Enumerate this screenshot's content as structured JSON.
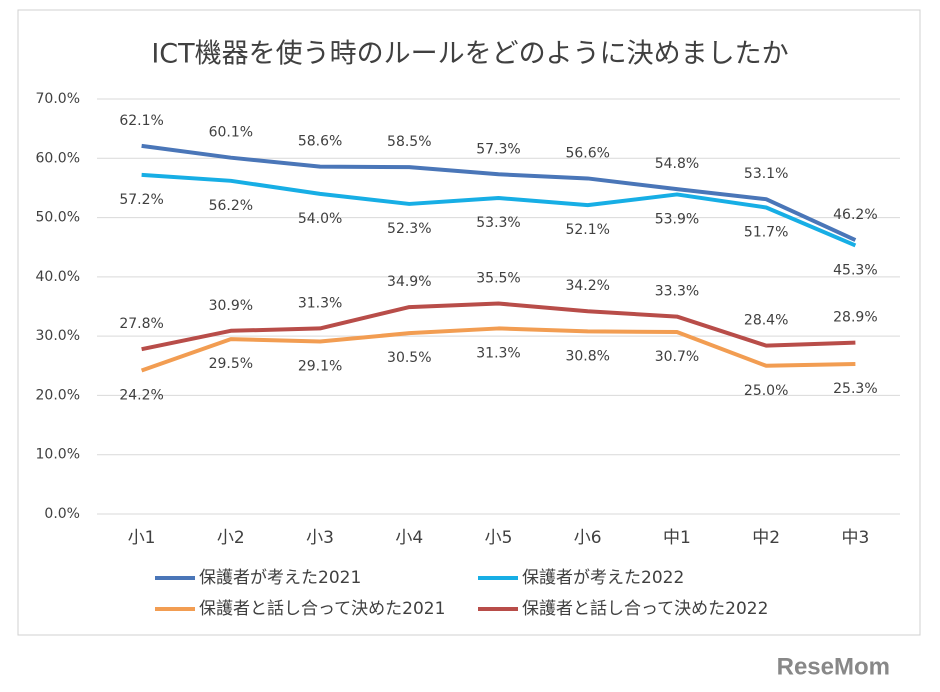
{
  "chart_data": {
    "type": "line",
    "title": "ICT機器を使う時のルールをどのように決めましたか",
    "categories": [
      "小1",
      "小2",
      "小3",
      "小4",
      "小5",
      "小6",
      "中1",
      "中2",
      "中3"
    ],
    "series": [
      {
        "name": "保護者が考えた2021",
        "color": "#4a76b8",
        "values": [
          62.1,
          60.1,
          58.6,
          58.5,
          57.3,
          56.6,
          54.8,
          53.1,
          46.2
        ],
        "value_labels": [
          "62.1%",
          "60.1%",
          "58.6%",
          "58.5%",
          "57.3%",
          "56.6%",
          "54.8%",
          "53.1%",
          "46.2%"
        ]
      },
      {
        "name": "保護者が考えた2022",
        "color": "#17aee5",
        "values": [
          57.2,
          56.2,
          54.0,
          52.3,
          53.3,
          52.1,
          53.9,
          51.7,
          45.3
        ],
        "value_labels": [
          "57.2%",
          "56.2%",
          "54.0%",
          "52.3%",
          "53.3%",
          "52.1%",
          "53.9%",
          "51.7%",
          "45.3%"
        ]
      },
      {
        "name": "保護者と話し合って決めた2021",
        "color": "#f29d52",
        "values": [
          24.2,
          29.5,
          29.1,
          30.5,
          31.3,
          30.8,
          30.7,
          25.0,
          25.3
        ],
        "value_labels": [
          "24.2%",
          "29.5%",
          "29.1%",
          "30.5%",
          "31.3%",
          "30.8%",
          "30.7%",
          "25.0%",
          "25.3%"
        ]
      },
      {
        "name": "保護者と話し合って決めた2022",
        "color": "#b84d49",
        "values": [
          27.8,
          30.9,
          31.3,
          34.9,
          35.5,
          34.2,
          33.3,
          28.4,
          28.9
        ],
        "value_labels": [
          "27.8%",
          "30.9%",
          "31.3%",
          "34.9%",
          "35.5%",
          "34.2%",
          "33.3%",
          "28.4%",
          "28.9%"
        ]
      }
    ],
    "ylim": [
      0,
      70
    ],
    "yticks": [
      {
        "value": 0,
        "label": "0.0%"
      },
      {
        "value": 10,
        "label": "10.0%"
      },
      {
        "value": 20,
        "label": "20.0%"
      },
      {
        "value": 30,
        "label": "30.0%"
      },
      {
        "value": 40,
        "label": "40.0%"
      },
      {
        "value": 50,
        "label": "50.0%"
      },
      {
        "value": 60,
        "label": "60.0%"
      },
      {
        "value": 70,
        "label": "70.0%"
      }
    ],
    "grid": true,
    "legend": "bottom"
  },
  "watermark": "ReseMom"
}
